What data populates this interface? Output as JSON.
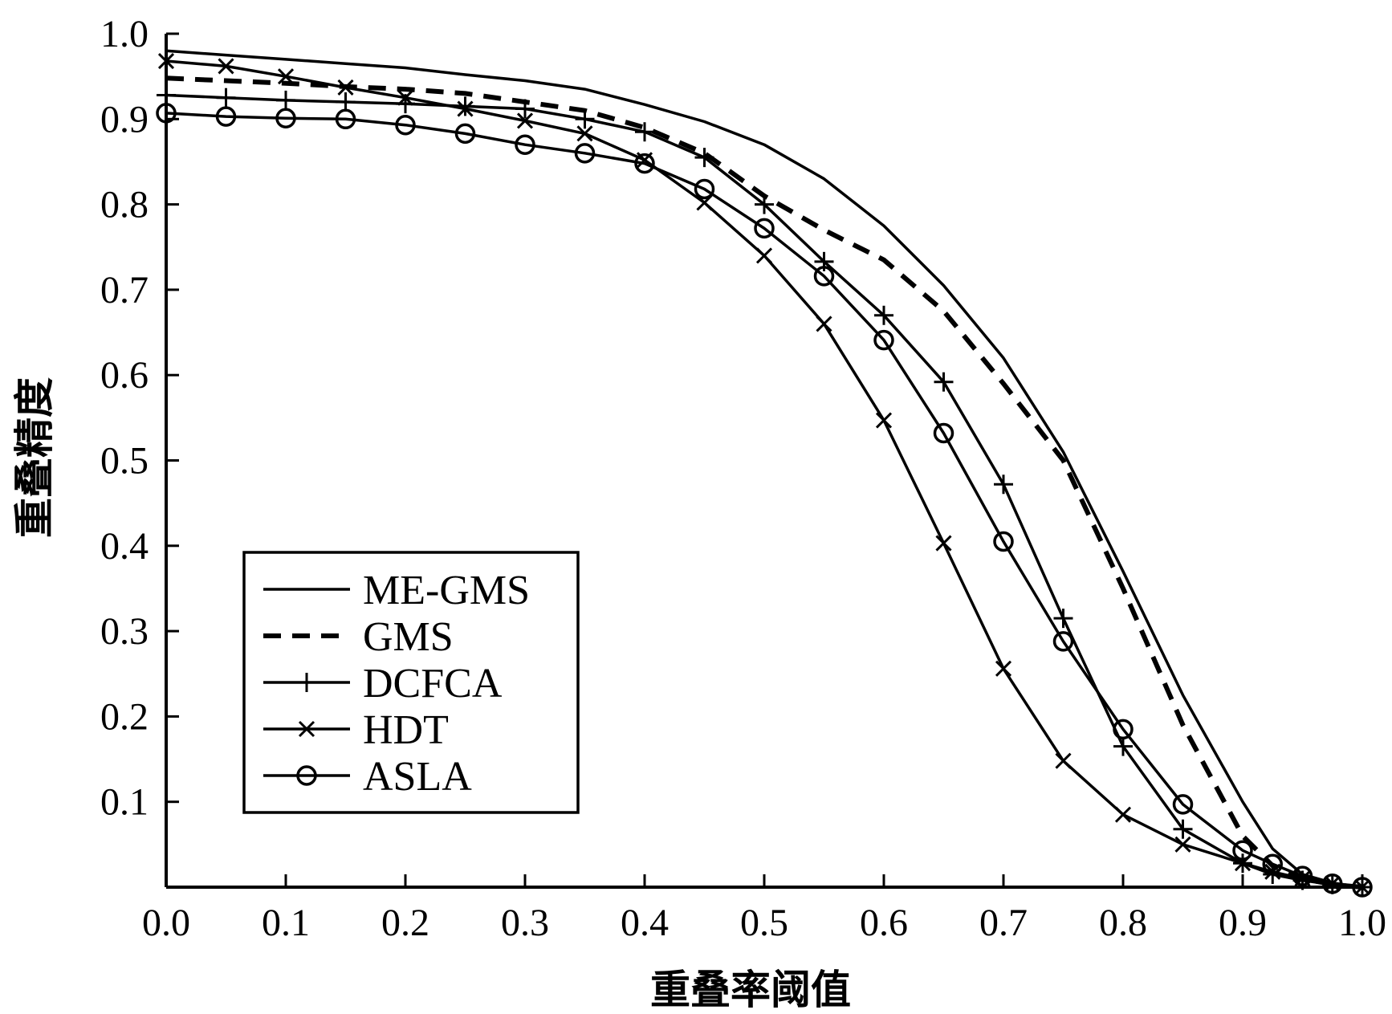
{
  "chart_data": {
    "type": "line",
    "title": "",
    "xlabel": "重叠率阈值",
    "ylabel": "重叠精度",
    "xlim": [
      0,
      1
    ],
    "ylim": [
      0,
      1
    ],
    "grid": false,
    "legend_position": "lower-left",
    "x_ticks": [
      "0.0",
      "0.1",
      "0.2",
      "0.3",
      "0.4",
      "0.5",
      "0.6",
      "0.7",
      "0.8",
      "0.9",
      "1.0"
    ],
    "y_ticks": [
      "0.1",
      "0.2",
      "0.3",
      "0.4",
      "0.5",
      "0.6",
      "0.7",
      "0.8",
      "0.9",
      "1.0"
    ],
    "series": [
      {
        "name": "ME-GMS",
        "style": "solid",
        "marker": "none",
        "points": [
          [
            0,
            0.98
          ],
          [
            0.05,
            0.975
          ],
          [
            0.1,
            0.97
          ],
          [
            0.15,
            0.965
          ],
          [
            0.2,
            0.96
          ],
          [
            0.25,
            0.952
          ],
          [
            0.3,
            0.945
          ],
          [
            0.35,
            0.935
          ],
          [
            0.4,
            0.917
          ],
          [
            0.45,
            0.897
          ],
          [
            0.5,
            0.87
          ],
          [
            0.55,
            0.83
          ],
          [
            0.6,
            0.775
          ],
          [
            0.65,
            0.705
          ],
          [
            0.7,
            0.62
          ],
          [
            0.75,
            0.51
          ],
          [
            0.8,
            0.37
          ],
          [
            0.85,
            0.225
          ],
          [
            0.9,
            0.1
          ],
          [
            0.925,
            0.045
          ],
          [
            0.95,
            0.015
          ],
          [
            0.975,
            0.005
          ],
          [
            1.0,
            0.0
          ]
        ]
      },
      {
        "name": "GMS",
        "style": "dashed",
        "marker": "none",
        "points": [
          [
            0,
            0.948
          ],
          [
            0.05,
            0.945
          ],
          [
            0.1,
            0.942
          ],
          [
            0.15,
            0.938
          ],
          [
            0.2,
            0.935
          ],
          [
            0.25,
            0.93
          ],
          [
            0.3,
            0.92
          ],
          [
            0.35,
            0.91
          ],
          [
            0.4,
            0.89
          ],
          [
            0.45,
            0.86
          ],
          [
            0.5,
            0.81
          ],
          [
            0.55,
            0.77
          ],
          [
            0.6,
            0.735
          ],
          [
            0.65,
            0.675
          ],
          [
            0.7,
            0.59
          ],
          [
            0.75,
            0.5
          ],
          [
            0.8,
            0.35
          ],
          [
            0.85,
            0.19
          ],
          [
            0.9,
            0.06
          ],
          [
            0.925,
            0.025
          ],
          [
            0.95,
            0.01
          ],
          [
            0.975,
            0.003
          ],
          [
            1.0,
            0.0
          ]
        ]
      },
      {
        "name": "DCFCA",
        "style": "solid",
        "marker": "plus",
        "points": [
          [
            0,
            0.928
          ],
          [
            0.05,
            0.925
          ],
          [
            0.1,
            0.922
          ],
          [
            0.15,
            0.92
          ],
          [
            0.2,
            0.918
          ],
          [
            0.25,
            0.915
          ],
          [
            0.3,
            0.912
          ],
          [
            0.35,
            0.9
          ],
          [
            0.4,
            0.885
          ],
          [
            0.45,
            0.855
          ],
          [
            0.5,
            0.8
          ],
          [
            0.55,
            0.733
          ],
          [
            0.6,
            0.67
          ],
          [
            0.65,
            0.592
          ],
          [
            0.7,
            0.472
          ],
          [
            0.75,
            0.315
          ],
          [
            0.8,
            0.165
          ],
          [
            0.85,
            0.068
          ],
          [
            0.9,
            0.028
          ],
          [
            0.925,
            0.015
          ],
          [
            0.95,
            0.008
          ],
          [
            0.975,
            0.003
          ],
          [
            1.0,
            0.0
          ]
        ]
      },
      {
        "name": "HDT",
        "style": "solid",
        "marker": "x",
        "points": [
          [
            0,
            0.968
          ],
          [
            0.05,
            0.962
          ],
          [
            0.1,
            0.95
          ],
          [
            0.15,
            0.937
          ],
          [
            0.2,
            0.925
          ],
          [
            0.25,
            0.912
          ],
          [
            0.3,
            0.898
          ],
          [
            0.35,
            0.883
          ],
          [
            0.4,
            0.852
          ],
          [
            0.45,
            0.802
          ],
          [
            0.5,
            0.74
          ],
          [
            0.55,
            0.66
          ],
          [
            0.6,
            0.547
          ],
          [
            0.65,
            0.403
          ],
          [
            0.7,
            0.256
          ],
          [
            0.75,
            0.148
          ],
          [
            0.8,
            0.085
          ],
          [
            0.85,
            0.05
          ],
          [
            0.9,
            0.028
          ],
          [
            0.925,
            0.018
          ],
          [
            0.95,
            0.01
          ],
          [
            0.975,
            0.004
          ],
          [
            1.0,
            0.0
          ]
        ]
      },
      {
        "name": "ASLA",
        "style": "solid",
        "marker": "circle",
        "points": [
          [
            0,
            0.907
          ],
          [
            0.05,
            0.903
          ],
          [
            0.1,
            0.901
          ],
          [
            0.15,
            0.9
          ],
          [
            0.2,
            0.893
          ],
          [
            0.25,
            0.883
          ],
          [
            0.3,
            0.87
          ],
          [
            0.35,
            0.86
          ],
          [
            0.4,
            0.848
          ],
          [
            0.45,
            0.818
          ],
          [
            0.5,
            0.772
          ],
          [
            0.55,
            0.716
          ],
          [
            0.6,
            0.641
          ],
          [
            0.65,
            0.532
          ],
          [
            0.7,
            0.405
          ],
          [
            0.75,
            0.288
          ],
          [
            0.8,
            0.185
          ],
          [
            0.85,
            0.097
          ],
          [
            0.9,
            0.043
          ],
          [
            0.925,
            0.027
          ],
          [
            0.95,
            0.013
          ],
          [
            0.975,
            0.004
          ],
          [
            1.0,
            0.0
          ]
        ]
      }
    ]
  }
}
